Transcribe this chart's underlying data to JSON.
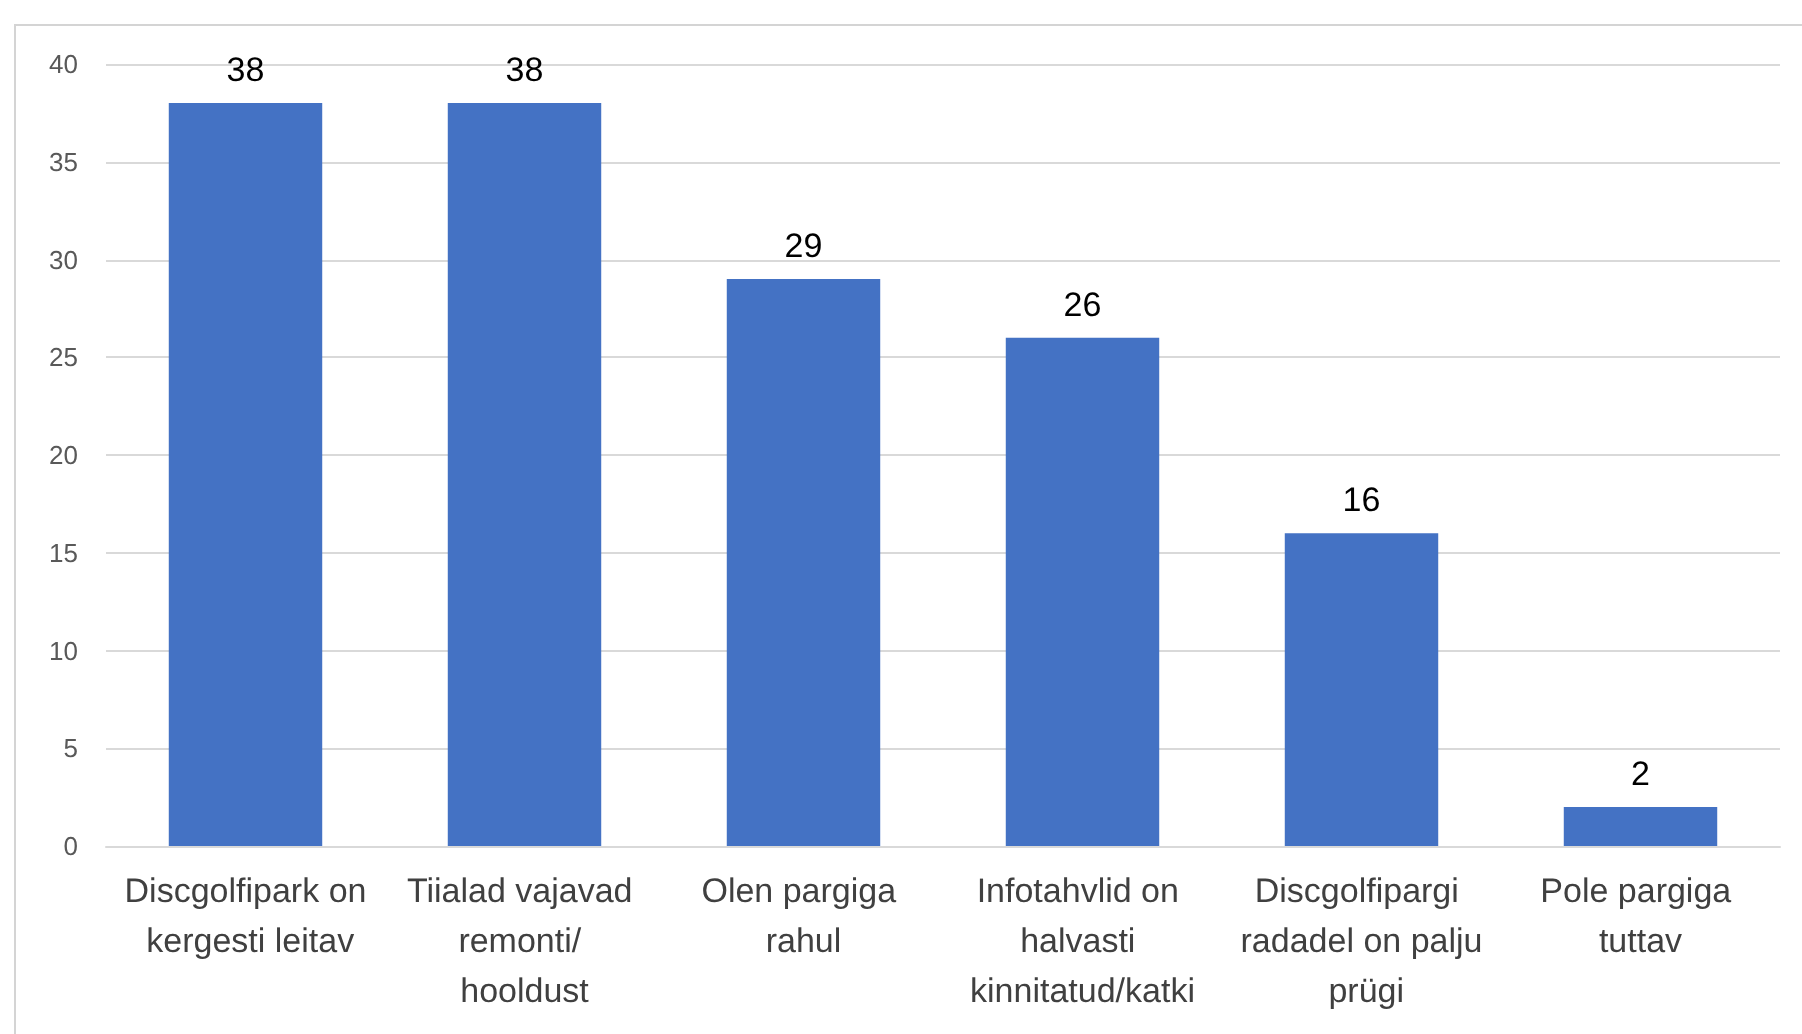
{
  "chart_data": {
    "type": "bar",
    "categories": [
      "Discgolfipark on kergesti leitav",
      "Tiialad vajavad remonti/ hooldust",
      "Olen pargiga rahul",
      "Infotahvlid on halvasti kinnitatud/katki",
      "Discgolfipargi radadel on palju prügi",
      "Pole pargiga tuttav"
    ],
    "values": [
      38,
      38,
      29,
      26,
      16,
      2
    ],
    "color": "#4472c4",
    "ylim": [
      0,
      40
    ],
    "yticks": [
      0,
      5,
      10,
      15,
      20,
      25,
      30,
      35,
      40
    ],
    "grid": "y",
    "data_labels": true
  }
}
